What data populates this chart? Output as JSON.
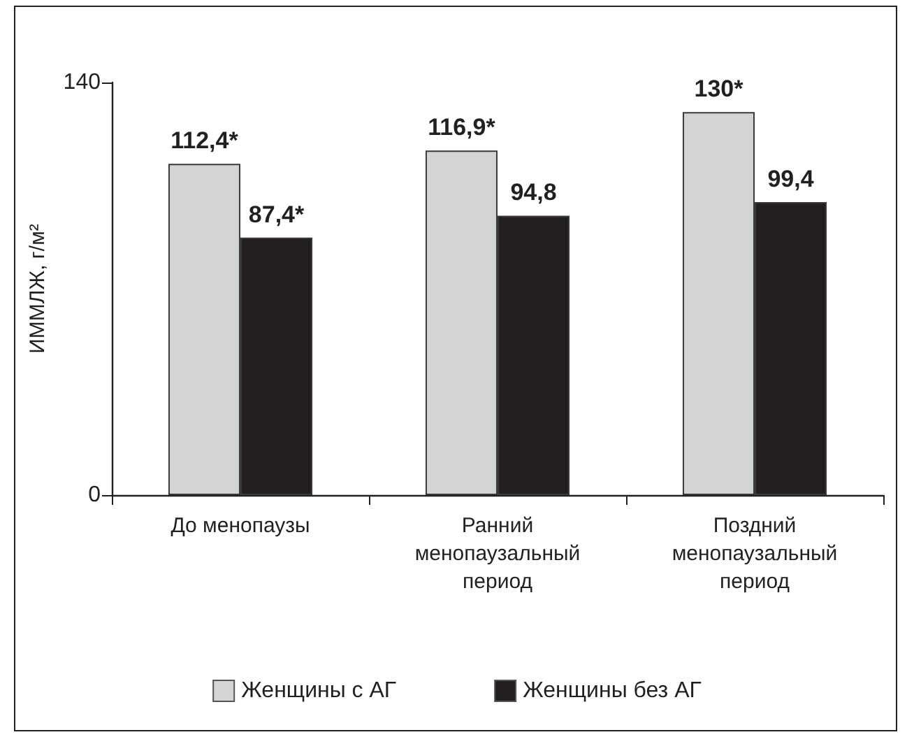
{
  "chart_data": {
    "type": "bar",
    "ylabel": "ИММЛЖ, г/м²",
    "categories": [
      "До менопаузы",
      "Ранний менопаузальный период",
      "Поздний менопаузальный период"
    ],
    "series": [
      {
        "name": "Женщины с АГ",
        "color": "#d3d4d6",
        "values": [
          112.4,
          116.9,
          130
        ],
        "value_labels": [
          "112,4*",
          "116,9*",
          "130*"
        ]
      },
      {
        "name": "Женщины без АГ",
        "color": "#231f20",
        "values": [
          87.4,
          94.8,
          99.4
        ],
        "value_labels": [
          "87,4*",
          "94,8",
          "99,4"
        ]
      }
    ],
    "ylim": [
      0,
      140
    ],
    "yticks": [
      0,
      140
    ],
    "grid": false,
    "legend": "bottom"
  }
}
